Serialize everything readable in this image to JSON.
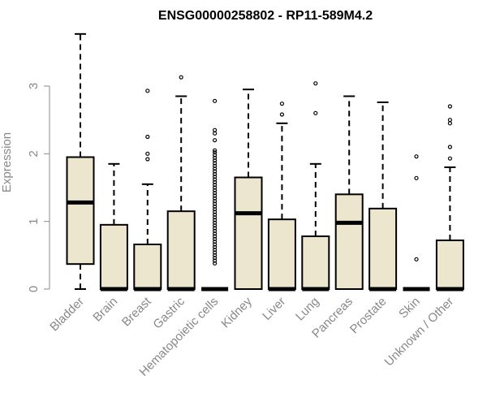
{
  "chart_data": {
    "type": "box",
    "title": "ENSG00000258802 - RP11-589M4.2",
    "xlabel": "",
    "ylabel": "Expression",
    "ylim": [
      0,
      3.8
    ],
    "yticks": [
      0,
      1,
      2,
      3
    ],
    "categories": [
      "Bladder",
      "Brain",
      "Breast",
      "Gastric",
      "Hematopoietic cells",
      "Kidney",
      "Liver",
      "Lung",
      "Pancreas",
      "Prostate",
      "Skin",
      "Unknown / Other"
    ],
    "box_fill": "#ede6cf",
    "box_stroke": "#000000",
    "boxes": [
      {
        "min": 0,
        "q1": 0.37,
        "median": 1.28,
        "q3": 1.95,
        "max": 3.77,
        "outliers": []
      },
      {
        "min": 0,
        "q1": 0,
        "median": 0,
        "q3": 0.95,
        "max": 1.85,
        "outliers": []
      },
      {
        "min": 0,
        "q1": 0,
        "median": 0,
        "q3": 0.66,
        "max": 1.55,
        "outliers": [
          1.92,
          2.0,
          2.25,
          2.93
        ]
      },
      {
        "min": 0,
        "q1": 0,
        "median": 0,
        "q3": 1.15,
        "max": 2.85,
        "outliers": [
          3.13
        ]
      },
      {
        "min": 0,
        "q1": 0,
        "median": 0,
        "q3": 0,
        "max": 0,
        "outliers": [
          0.38,
          0.42,
          0.46,
          0.5,
          0.54,
          0.58,
          0.62,
          0.66,
          0.7,
          0.74,
          0.78,
          0.82,
          0.86,
          0.9,
          0.94,
          0.98,
          1.02,
          1.06,
          1.1,
          1.14,
          1.18,
          1.22,
          1.26,
          1.3,
          1.34,
          1.38,
          1.42,
          1.46,
          1.5,
          1.54,
          1.58,
          1.62,
          1.66,
          1.7,
          1.74,
          1.78,
          1.82,
          1.86,
          1.9,
          1.94,
          1.98,
          2.02,
          2.05,
          2.2,
          2.3,
          2.35,
          2.78
        ]
      },
      {
        "min": 0,
        "q1": 0,
        "median": 1.12,
        "q3": 1.65,
        "max": 2.95,
        "outliers": []
      },
      {
        "min": 0,
        "q1": 0,
        "median": 0,
        "q3": 1.03,
        "max": 2.45,
        "outliers": [
          2.58,
          2.74
        ]
      },
      {
        "min": 0,
        "q1": 0,
        "median": 0,
        "q3": 0.78,
        "max": 1.85,
        "outliers": [
          2.6,
          3.04
        ]
      },
      {
        "min": 0,
        "q1": 0,
        "median": 0.98,
        "q3": 1.4,
        "max": 2.85,
        "outliers": []
      },
      {
        "min": 0,
        "q1": 0,
        "median": 0,
        "q3": 1.19,
        "max": 2.76,
        "outliers": []
      },
      {
        "min": 0,
        "q1": 0,
        "median": 0,
        "q3": 0,
        "max": 0,
        "outliers": [
          0.44,
          1.64,
          1.96
        ]
      },
      {
        "min": 0,
        "q1": 0,
        "median": 0,
        "q3": 0.72,
        "max": 1.8,
        "outliers": [
          1.93,
          2.1,
          2.45,
          2.5,
          2.7
        ]
      }
    ]
  }
}
